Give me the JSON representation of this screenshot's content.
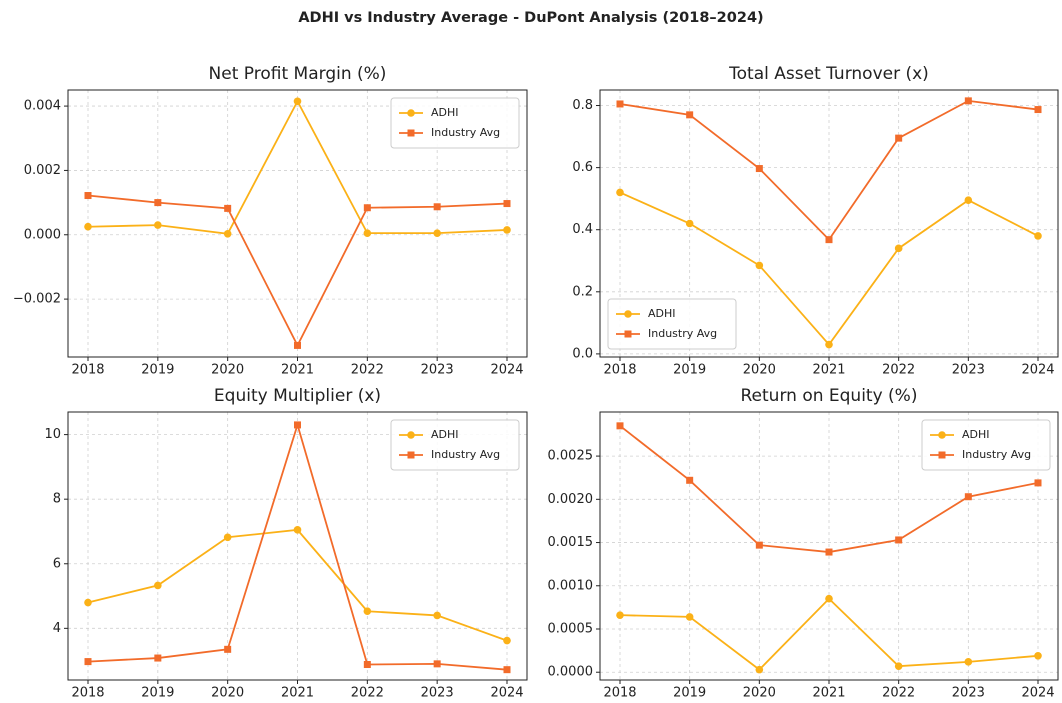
{
  "title": "ADHI vs Industry Average - DuPont Analysis (2018–2024)",
  "chart_data": [
    {
      "type": "line",
      "title": "Net Profit Margin (%)",
      "categories": [
        "2018",
        "2019",
        "2020",
        "2021",
        "2022",
        "2023",
        "2024"
      ],
      "series": [
        {
          "name": "ADHI",
          "color": "#fbb117",
          "marker": "circle",
          "values": [
            0.00025,
            0.0003,
            3e-05,
            0.00415,
            5e-05,
            5e-05,
            0.00015
          ]
        },
        {
          "name": "Industry Avg",
          "color": "#f26b2a",
          "marker": "square",
          "values": [
            0.00122,
            0.001,
            0.00082,
            -0.00344,
            0.00084,
            0.00087,
            0.00097
          ]
        }
      ],
      "ylim": [
        -0.0038,
        0.0045
      ],
      "yticks": [
        {
          "value": -0.002,
          "label": "−0.002"
        },
        {
          "value": 0,
          "label": "0.000"
        },
        {
          "value": 0.002,
          "label": "0.002"
        },
        {
          "value": 0.004,
          "label": "0.004"
        }
      ],
      "grid": true,
      "legend": "upper right"
    },
    {
      "type": "line",
      "title": "Total Asset Turnover (x)",
      "categories": [
        "2018",
        "2019",
        "2020",
        "2021",
        "2022",
        "2023",
        "2024"
      ],
      "series": [
        {
          "name": "ADHI",
          "color": "#fbb117",
          "marker": "circle",
          "values": [
            0.52,
            0.42,
            0.285,
            0.03,
            0.34,
            0.495,
            0.38
          ]
        },
        {
          "name": "Industry Avg",
          "color": "#f26b2a",
          "marker": "square",
          "values": [
            0.805,
            0.77,
            0.597,
            0.368,
            0.695,
            0.815,
            0.787
          ]
        }
      ],
      "ylim": [
        -0.01,
        0.85
      ],
      "yticks": [
        {
          "value": 0,
          "label": "0.0"
        },
        0.2,
        0.4,
        0.6,
        0.8
      ],
      "grid": true,
      "legend": "lower left"
    },
    {
      "type": "line",
      "title": "Equity Multiplier (x)",
      "categories": [
        "2018",
        "2019",
        "2020",
        "2021",
        "2022",
        "2023",
        "2024"
      ],
      "series": [
        {
          "name": "ADHI",
          "color": "#fbb117",
          "marker": "circle",
          "values": [
            4.8,
            5.33,
            6.82,
            7.05,
            4.53,
            4.4,
            3.62
          ]
        },
        {
          "name": "Industry Avg",
          "color": "#f26b2a",
          "marker": "square",
          "values": [
            2.97,
            3.08,
            3.35,
            10.3,
            2.88,
            2.9,
            2.72
          ]
        }
      ],
      "ylim": [
        2.4,
        10.7
      ],
      "yticks": [
        4,
        6,
        8,
        10
      ],
      "grid": true,
      "legend": "upper right"
    },
    {
      "type": "line",
      "title": "Return on Equity (%)",
      "categories": [
        "2018",
        "2019",
        "2020",
        "2021",
        "2022",
        "2023",
        "2024"
      ],
      "series": [
        {
          "name": "ADHI",
          "color": "#fbb117",
          "marker": "circle",
          "values": [
            0.00066,
            0.00064,
            3e-05,
            0.00085,
            7e-05,
            0.00012,
            0.00019
          ]
        },
        {
          "name": "Industry Avg",
          "color": "#f26b2a",
          "marker": "square",
          "values": [
            0.00285,
            0.00222,
            0.00147,
            0.00139,
            0.00153,
            0.00203,
            0.00219
          ]
        }
      ],
      "ylim": [
        -9e-05,
        0.00301
      ],
      "yticks": [
        {
          "value": 0,
          "label": "0.0000"
        },
        {
          "value": 0.0005,
          "label": "0.0005"
        },
        {
          "value": 0.001,
          "label": "0.0010"
        },
        {
          "value": 0.0015,
          "label": "0.0015"
        },
        {
          "value": 0.002,
          "label": "0.0020"
        },
        {
          "value": 0.0025,
          "label": "0.0025"
        }
      ],
      "grid": true,
      "legend": "upper right"
    }
  ]
}
